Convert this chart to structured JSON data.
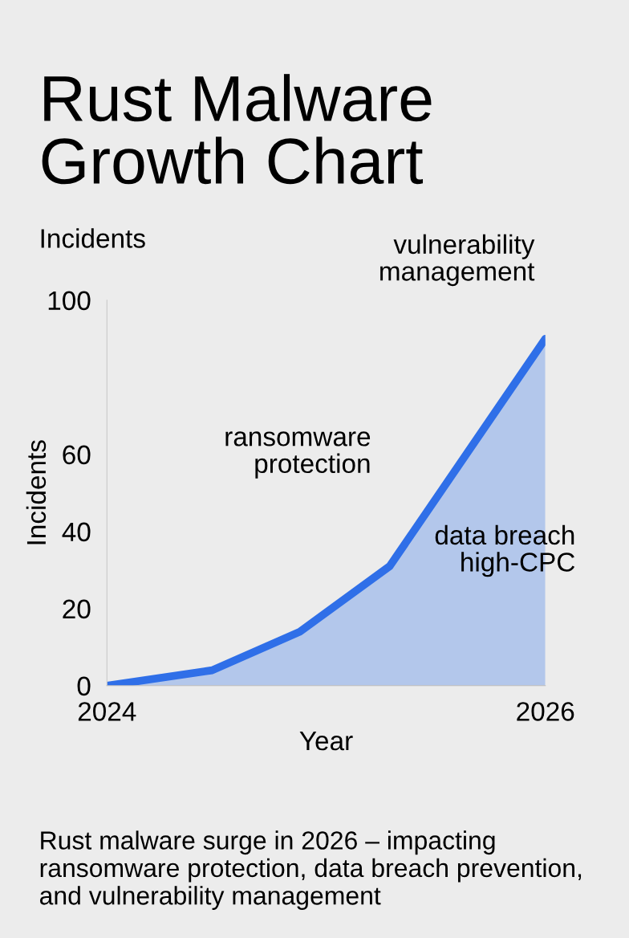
{
  "chart_data": {
    "type": "area",
    "title": "Rust Malware\nGrowth Chart",
    "subtitle": "Incidents",
    "xlabel": "Year",
    "ylabel": "Incidents",
    "x": [
      2024,
      2024.48,
      2024.88,
      2025.29,
      2026
    ],
    "series": [
      {
        "color": "#2f6fe8",
        "values": [
          0,
          4,
          14,
          31,
          90
        ]
      }
    ],
    "xlim": [
      2024,
      2026
    ],
    "xticks": [
      2024,
      2026
    ],
    "ylim": [
      0,
      100
    ],
    "yticks": [
      0,
      20,
      40,
      60,
      100
    ],
    "grid": false,
    "legend": false,
    "marker": "none",
    "line_style": "solid",
    "annotations": [
      "vulnerability\nmanagement",
      "ransomware\nprotection",
      "data breach\nhigh-CPC",
      "Rust malware surge in 2026 – impacting ransomware protection, data breach prevention, and vulnerability management"
    ]
  }
}
